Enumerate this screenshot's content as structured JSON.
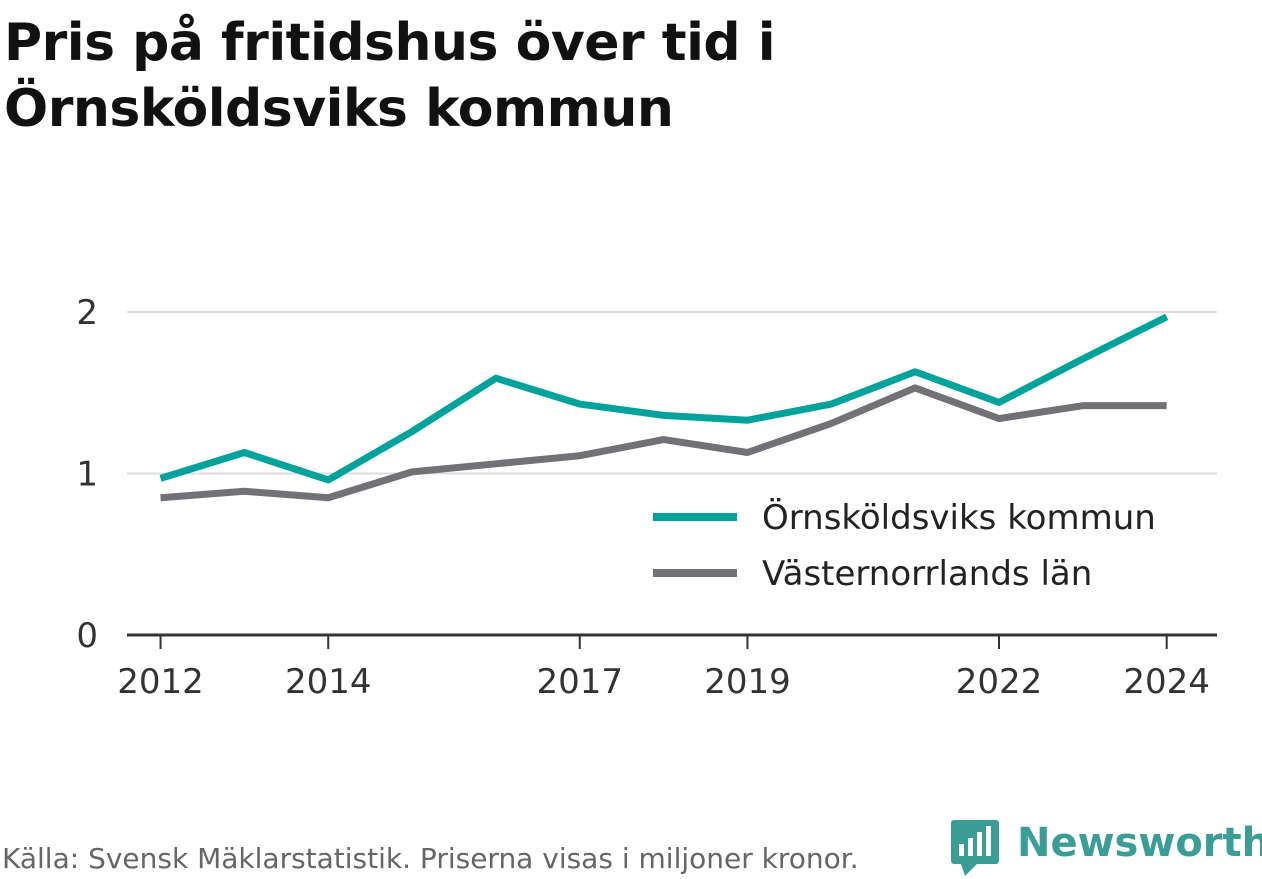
{
  "title": "Pris på fritidshus över tid i Örnsköldsviks kommun",
  "footer": "Källa: Svensk Mäklarstatistik. Priserna visas i miljoner kronor.",
  "brand": "Newsworthy",
  "chart_data": {
    "type": "line",
    "title": "Pris på fritidshus över tid i Örnsköldsviks kommun",
    "xlabel": "",
    "ylabel": "",
    "x": [
      2012,
      2013,
      2014,
      2015,
      2016,
      2017,
      2018,
      2019,
      2020,
      2021,
      2022,
      2023,
      2024
    ],
    "x_ticks": [
      "2012",
      "2014",
      "2017",
      "2019",
      "2022",
      "2024"
    ],
    "y_ticks": [
      "0",
      "1",
      "2"
    ],
    "xlim": [
      2011.6,
      2024.6
    ],
    "ylim": [
      0,
      2
    ],
    "grid": true,
    "legend": "right",
    "series": [
      {
        "name": "Örnsköldsviks kommun",
        "color": "#00a39b",
        "values": [
          0.97,
          1.13,
          0.96,
          1.26,
          1.59,
          1.43,
          1.36,
          1.33,
          1.43,
          1.63,
          1.44,
          1.71,
          1.97
        ]
      },
      {
        "name": "Västernorrlands län",
        "color": "#727176",
        "values": [
          0.85,
          0.89,
          0.85,
          1.01,
          1.06,
          1.11,
          1.21,
          1.13,
          1.31,
          1.53,
          1.34,
          1.42,
          1.42
        ]
      }
    ]
  }
}
